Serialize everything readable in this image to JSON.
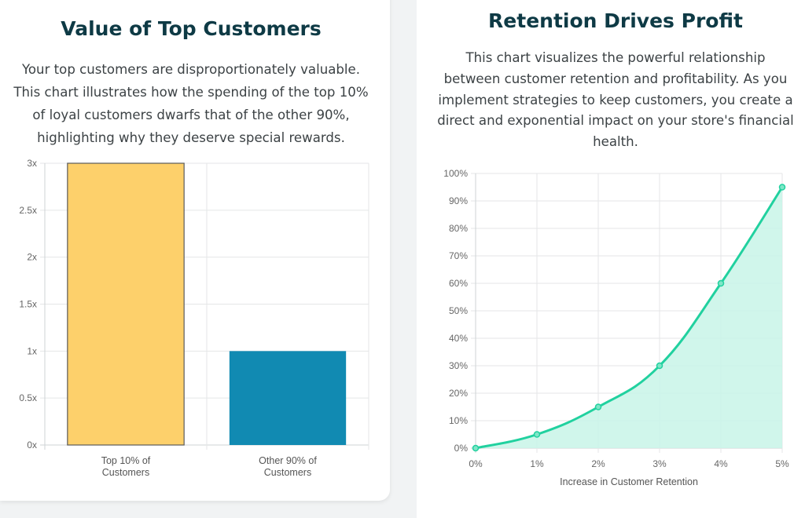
{
  "left": {
    "title": "Value of Top Customers",
    "description_lines": [
      "Your top customers are disproportionately valuable.",
      "This chart illustrates how the spending of the top 10%",
      "of loyal customers dwarfs that of the other 90%,",
      "highlighting why they deserve special rewards."
    ]
  },
  "right": {
    "title": "Retention Drives Profit",
    "description_lines": [
      "This chart visualizes the powerful relationship",
      "between customer retention and profitability. As you",
      "implement strategies to keep customers, you create a",
      "direct and exponential impact on your store's financial",
      "health."
    ]
  },
  "chart_data": [
    {
      "type": "bar",
      "categories": [
        [
          "Top 10% of",
          "Customers"
        ],
        [
          "Other 90% of",
          "Customers"
        ]
      ],
      "values": [
        3,
        1
      ],
      "ylim": [
        0,
        3
      ],
      "yticks": [
        0,
        0.5,
        1,
        1.5,
        2,
        2.5,
        3
      ],
      "ytick_labels": [
        "0x",
        "0.5x",
        "1x",
        "1.5x",
        "2x",
        "2.5x",
        "3x"
      ],
      "colors": [
        "#fdd06b",
        "#118ab2"
      ],
      "bar_border_color": "#5a5a5a",
      "xlabel": "",
      "ylabel": "",
      "grid": true
    },
    {
      "type": "area",
      "x": [
        "0%",
        "1%",
        "2%",
        "3%",
        "4%",
        "5%"
      ],
      "values": [
        0,
        5,
        15,
        30,
        60,
        95
      ],
      "ylim": [
        0,
        100
      ],
      "yticks": [
        0,
        10,
        20,
        30,
        40,
        50,
        60,
        70,
        80,
        90,
        100
      ],
      "ytick_labels": [
        "0%",
        "10%",
        "20%",
        "30%",
        "40%",
        "50%",
        "60%",
        "70%",
        "80%",
        "90%",
        "100%"
      ],
      "line_color": "#21d19f",
      "fill_color": "#c8f5e7",
      "xlabel": "Increase in Customer Retention",
      "ylabel": "",
      "grid": true
    }
  ]
}
